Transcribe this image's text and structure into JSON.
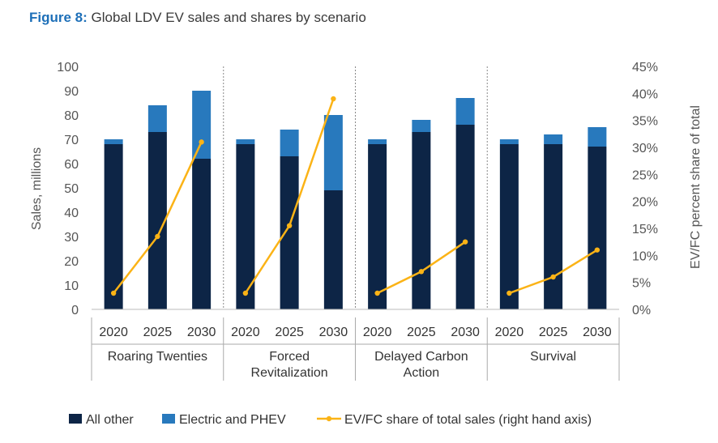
{
  "figure": {
    "label": "Figure 8:",
    "title": "Global LDV EV sales and shares by scenario"
  },
  "colors": {
    "all_other": "#0d2546",
    "electric": "#2879bd",
    "share_line": "#fbb316",
    "axis_text": "#555555"
  },
  "chart_data": {
    "type": "bar",
    "stacked": true,
    "combo_line": true,
    "title": "Global LDV EV sales and shares by scenario",
    "ylabel": "Sales, millions",
    "y2label": "EV/FC percent share of total",
    "ylim": [
      0,
      100
    ],
    "y2lim": [
      0,
      45
    ],
    "yticks": [
      "0",
      "10",
      "20",
      "30",
      "40",
      "50",
      "60",
      "70",
      "80",
      "90",
      "100"
    ],
    "y2ticks": [
      "0%",
      "5%",
      "10%",
      "15%",
      "20%",
      "25%",
      "30%",
      "35%",
      "40%",
      "45%"
    ],
    "groups": [
      {
        "name": "Roaring Twenties",
        "categories": [
          "2020",
          "2025",
          "2030"
        ]
      },
      {
        "name": "Forced Revitalization",
        "categories": [
          "2020",
          "2025",
          "2030"
        ]
      },
      {
        "name": "Delayed Carbon Action",
        "categories": [
          "2020",
          "2025",
          "2030"
        ]
      },
      {
        "name": "Survival",
        "categories": [
          "2020",
          "2025",
          "2030"
        ]
      }
    ],
    "series": [
      {
        "name": "All other",
        "type": "bar",
        "values": [
          68,
          73,
          62,
          68,
          63,
          49,
          68,
          73,
          76,
          68,
          68,
          67
        ]
      },
      {
        "name": "Electric and PHEV",
        "type": "bar",
        "values": [
          2,
          11,
          28,
          2,
          11,
          31,
          2,
          5,
          11,
          2,
          4,
          8
        ]
      },
      {
        "name": "EV/FC share of total sales (right hand axis)",
        "type": "line",
        "axis": "right",
        "values": [
          3,
          13.5,
          31,
          3,
          15.5,
          39,
          3,
          7,
          12.5,
          3,
          6,
          11
        ]
      }
    ]
  }
}
